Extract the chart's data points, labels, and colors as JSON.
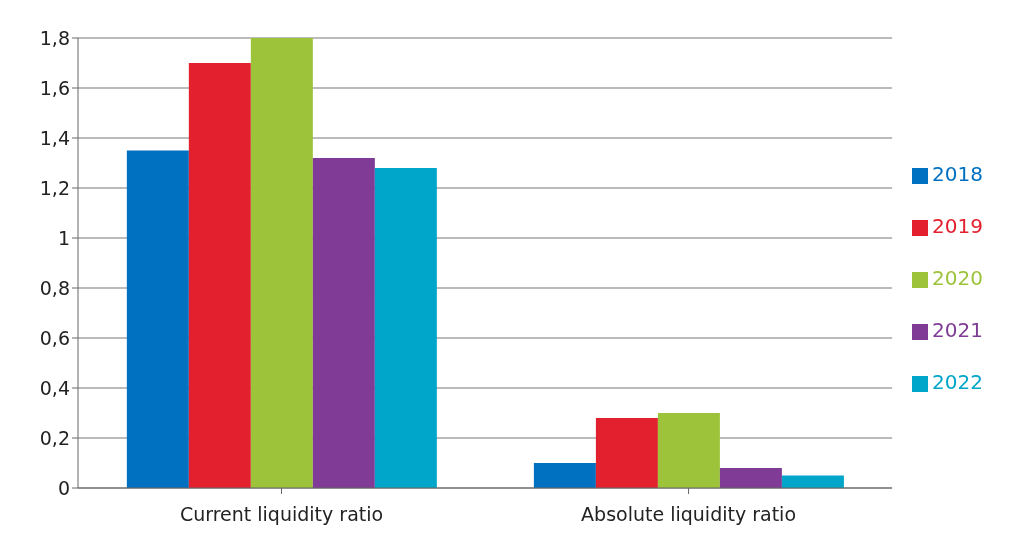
{
  "chart_data": {
    "type": "bar",
    "categories": [
      "Current liquidity ratio",
      "Absolute liquidity ratio"
    ],
    "series": [
      {
        "name": "2018",
        "color": "#0070c0",
        "values": [
          1.35,
          0.1
        ]
      },
      {
        "name": "2019",
        "color": "#e3202e",
        "values": [
          1.7,
          0.28
        ]
      },
      {
        "name": "2020",
        "color": "#9dc33b",
        "values": [
          1.8,
          0.3
        ]
      },
      {
        "name": "2021",
        "color": "#7f3b96",
        "values": [
          1.32,
          0.08
        ]
      },
      {
        "name": "2022",
        "color": "#00a6c9",
        "values": [
          1.28,
          0.05
        ]
      }
    ],
    "ylim": [
      0,
      1.8
    ],
    "yticks": [
      0,
      {
        "value": 0.2,
        "label": "0,2"
      },
      {
        "value": 0.4,
        "label": "0,4"
      },
      {
        "value": 0.6,
        "label": "0,6"
      },
      {
        "value": 0.8,
        "label": "0,8"
      },
      1,
      {
        "value": 1.2,
        "label": "1,2"
      },
      {
        "value": 1.4,
        "label": "1,4"
      },
      {
        "value": 1.6,
        "label": "1,6"
      },
      {
        "value": 1.8,
        "label": "1,8"
      }
    ],
    "grid": "y",
    "legend": "right"
  }
}
